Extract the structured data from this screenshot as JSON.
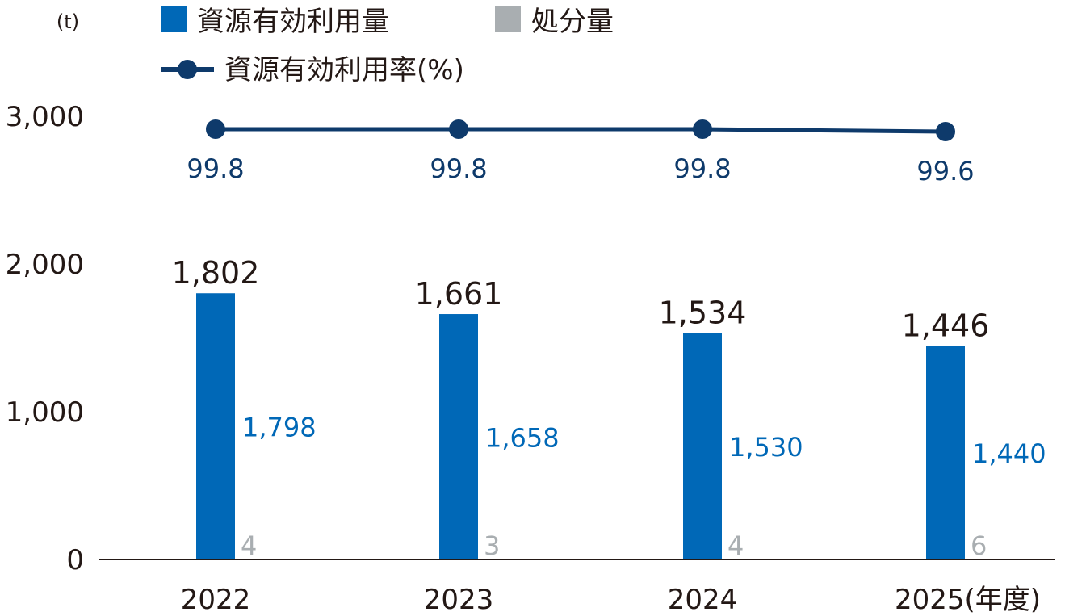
{
  "chart_data": {
    "type": "bar",
    "unit_label": "(t)",
    "categories": [
      "2022",
      "2023",
      "2024",
      "2025"
    ],
    "category_suffix": "(年度)",
    "series": [
      {
        "name": "資源有効利用量",
        "type": "bar",
        "color": "#0068b7",
        "values": [
          1798,
          1658,
          1530,
          1440
        ]
      },
      {
        "name": "処分量",
        "type": "bar",
        "color": "#a9aeb1",
        "values": [
          4,
          3,
          4,
          6
        ]
      },
      {
        "name": "資源有効利用率(%)",
        "type": "line",
        "color": "#0e3a6b",
        "values": [
          99.8,
          99.8,
          99.8,
          99.6
        ]
      }
    ],
    "totals": [
      1802,
      1661,
      1534,
      1446
    ],
    "total_labels": [
      "1,802",
      "1,661",
      "1,534",
      "1,446"
    ],
    "reuse_labels": [
      "1,798",
      "1,658",
      "1,530",
      "1,440"
    ],
    "disposal_labels": [
      "4",
      "3",
      "4",
      "6"
    ],
    "rate_labels": [
      "99.8",
      "99.8",
      "99.8",
      "99.6"
    ],
    "y_ticks": [
      0,
      1000,
      2000,
      3000
    ],
    "y_tick_labels": [
      "0",
      "1,000",
      "2,000",
      "3,000"
    ],
    "ylim": [
      0,
      3000
    ],
    "legend_position": "top",
    "grid": false
  }
}
